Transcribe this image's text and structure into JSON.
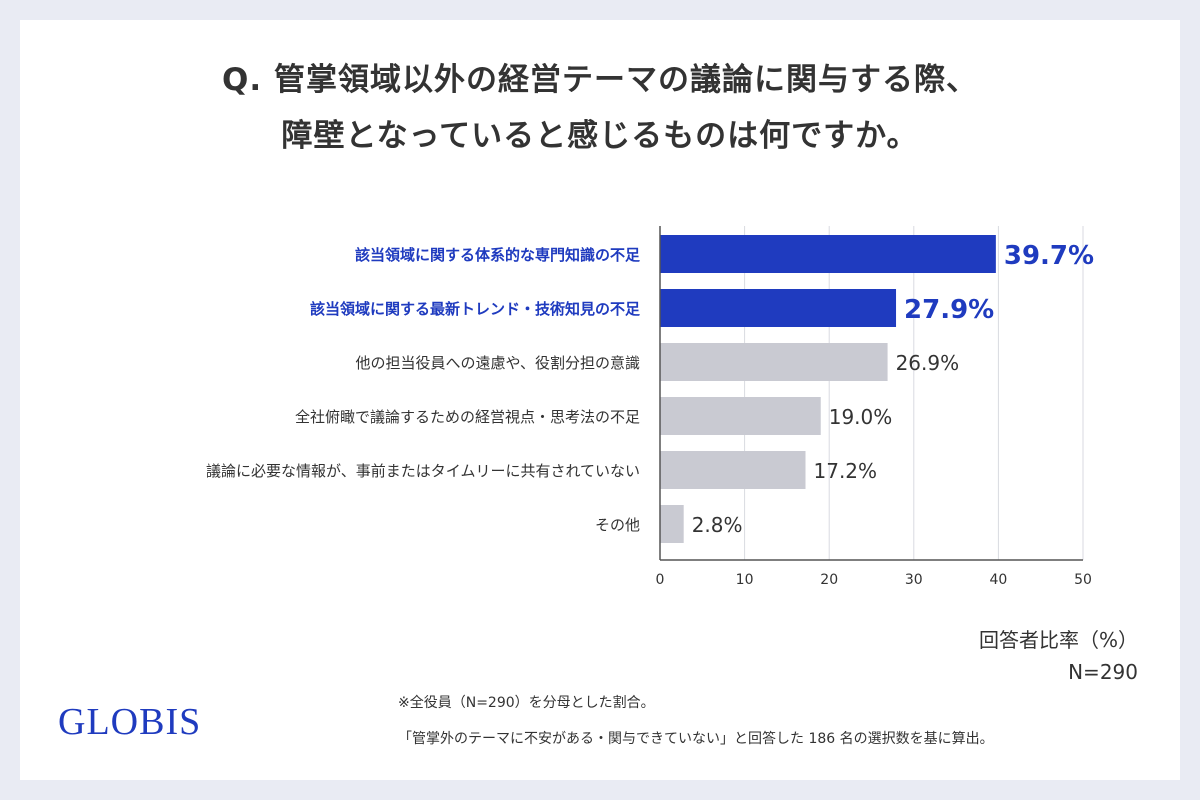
{
  "title": {
    "line1": "Q. 管掌領域以外の経営テーマの議論に関与する際、",
    "line2": "障壁となっていると感じるものは何ですか。"
  },
  "colors": {
    "highlight": "#1f3bbf",
    "bar": "#c9cad2",
    "text": "#333333"
  },
  "chart_data": {
    "type": "bar",
    "orientation": "horizontal",
    "categories": [
      "該当領域に関する体系的な専門知識の不足",
      "該当領域に関する最新トレンド・技術知見の不足",
      "他の担当役員への遠慮や、役割分担の意識",
      "全社俯瞰で議論するための経営視点・思考法の不足",
      "議論に必要な情報が、事前またはタイムリーに共有されていない",
      "その他"
    ],
    "values": [
      39.7,
      27.9,
      26.9,
      19.0,
      17.2,
      2.8
    ],
    "value_labels": [
      "39.7%",
      "27.9%",
      "26.9%",
      "19.0%",
      "17.2%",
      "2.8%"
    ],
    "highlighted": [
      true,
      true,
      false,
      false,
      false,
      false
    ],
    "xlim": [
      0,
      50
    ],
    "xticks": [
      "0",
      "10",
      "20",
      "30",
      "40",
      "50"
    ],
    "xlabel": "回答者比率（%）",
    "grid": true
  },
  "sample": "N=290",
  "logo": "GLOBIS",
  "footnotes": [
    "※全役員（N=290）を分母とした割合。",
    "「管掌外のテーマに不安がある・関与できていない」と回答した 186 名の選択数を基に算出。"
  ]
}
